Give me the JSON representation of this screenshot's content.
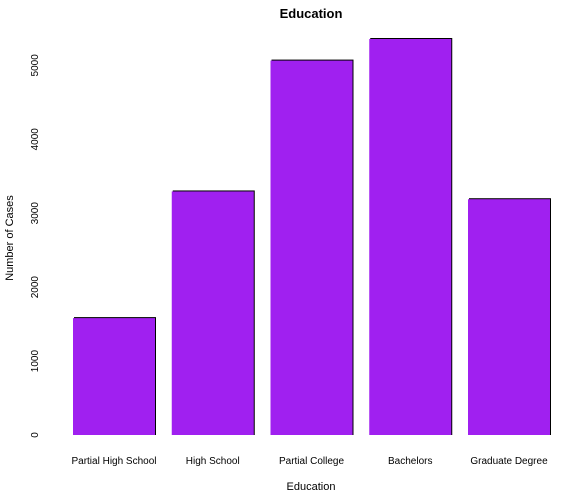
{
  "chart_data": {
    "type": "bar",
    "title": "Education",
    "xlabel": "Education",
    "ylabel": "Number of Cases",
    "categories": [
      "Partial High School",
      "High School",
      "Partial College",
      "Bachelors",
      "Graduate Degree"
    ],
    "values": [
      1581,
      3294,
      5064,
      5356,
      3189
    ],
    "yticks": [
      0,
      1000,
      2000,
      3000,
      4000,
      5000
    ],
    "ytick_labels": [
      "0",
      "1000",
      "2000",
      "3000",
      "4000",
      "5000"
    ],
    "ylim": [
      0,
      5356
    ],
    "grid": false,
    "bar_color": "#a020f0"
  }
}
